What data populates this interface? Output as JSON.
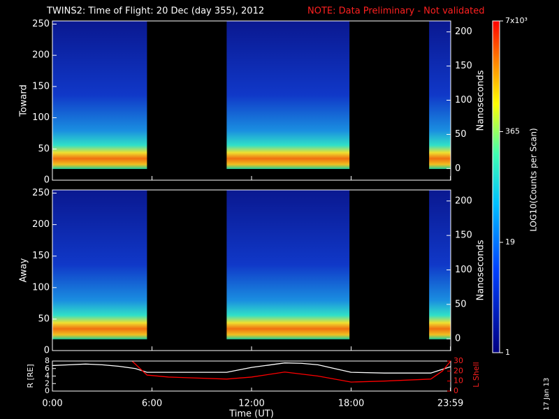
{
  "title": "TWINS2: Time of Flight: 20 Dec (day 355), 2012",
  "note": "NOTE: Data Preliminary - Not validated",
  "stamp": "17 Jan 13",
  "chart_data": [
    {
      "type": "spectrogram",
      "ylabel": "Toward",
      "y2label": "Nanoseconds",
      "ylim": [
        0,
        255
      ],
      "yticks": [
        0,
        50,
        100,
        150,
        200,
        250
      ],
      "y2lim": [
        -17,
        216
      ],
      "y2ticks": [
        0,
        50,
        100,
        150,
        200
      ],
      "xlim": [
        0,
        24
      ],
      "intervals": [
        {
          "start": 0,
          "end": 5.7,
          "low": 18,
          "high": 255
        },
        {
          "start": 10.5,
          "end": 17.9,
          "low": 18,
          "high": 255
        },
        {
          "start": 22.7,
          "end": 24,
          "low": 18,
          "high": 255
        }
      ]
    },
    {
      "type": "spectrogram",
      "ylabel": "Away",
      "y2label": "Nanoseconds",
      "ylim": [
        0,
        255
      ],
      "yticks": [
        0,
        50,
        100,
        150,
        200,
        250
      ],
      "y2lim": [
        -17,
        216
      ],
      "y2ticks": [
        0,
        50,
        100,
        150,
        200
      ],
      "xlim": [
        0,
        24
      ],
      "intervals": [
        {
          "start": 0,
          "end": 5.7,
          "low": 18,
          "high": 255
        },
        {
          "start": 10.5,
          "end": 17.9,
          "low": 18,
          "high": 255
        },
        {
          "start": 22.7,
          "end": 24,
          "low": 18,
          "high": 255
        }
      ]
    },
    {
      "type": "line",
      "xlabel": "Time (UT)",
      "ylabel": "R [RE]",
      "y2label": "L Shell",
      "xlim": [
        0,
        24
      ],
      "xticks": [
        {
          "value": 0,
          "label": "0:00"
        },
        {
          "value": 6,
          "label": "6:00"
        },
        {
          "value": 12,
          "label": "12:00"
        },
        {
          "value": 18,
          "label": "18:00"
        },
        {
          "value": 23.983,
          "label": "23:59"
        }
      ],
      "ylim": [
        0,
        8
      ],
      "yticks": [
        0,
        2,
        4,
        6,
        8
      ],
      "y2lim": [
        0,
        30
      ],
      "y2ticks": [
        0,
        10,
        20,
        30
      ],
      "series": [
        {
          "color": "#ffffff",
          "x": [
            0,
            1,
            2,
            3,
            4,
            5,
            5.7,
            8,
            10.5,
            12,
            14,
            15,
            16,
            17,
            18,
            20,
            22.8,
            24
          ],
          "values": [
            6.8,
            7.0,
            7.2,
            7.0,
            6.6,
            6.0,
            5.0,
            5.0,
            5.0,
            6.3,
            7.5,
            7.4,
            7.0,
            6.0,
            5.0,
            4.8,
            4.8,
            6.5
          ]
        },
        {
          "color": "#ff0000",
          "axis": "y2",
          "x": [
            4.8,
            5.7,
            7,
            10.5,
            12,
            14,
            16,
            18,
            20,
            22.8,
            23.5,
            24
          ],
          "values": [
            30,
            16,
            14,
            12,
            14,
            19,
            15,
            9,
            10,
            12,
            20,
            30
          ]
        }
      ]
    },
    {
      "type": "colorbar",
      "label": "LOG10(Counts per Scan)",
      "log": true,
      "lim": [
        1,
        7000
      ],
      "ticks": [
        1,
        19,
        365,
        {
          "value": 7000,
          "label": "7x10³"
        }
      ]
    }
  ]
}
